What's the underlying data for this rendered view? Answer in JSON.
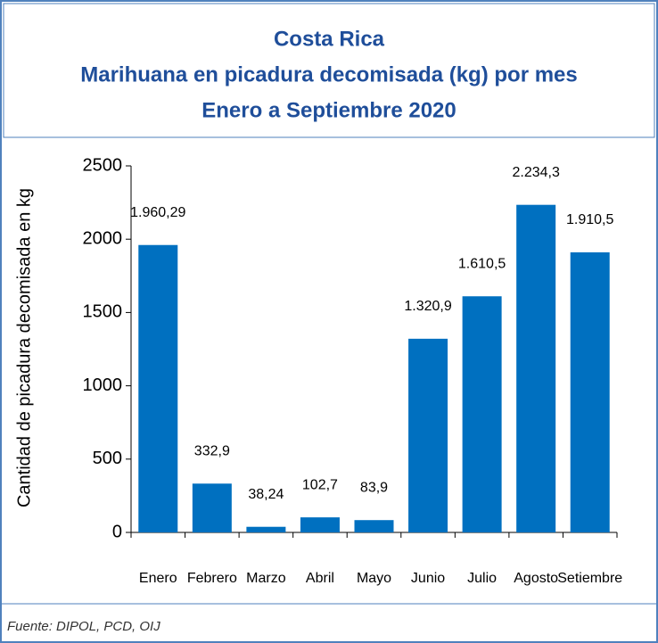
{
  "chart_data": {
    "type": "bar",
    "title": [
      "Costa Rica",
      "Marihuana en picadura decomisada (kg) por mes",
      "Enero a Septiembre 2020"
    ],
    "y_label": "Cantidad de picadura decomisada en kg",
    "categories": [
      "Enero",
      "Febrero",
      "Marzo",
      "Abril",
      "Mayo",
      "Junio",
      "Julio",
      "Agosto",
      "Setiembre"
    ],
    "values": [
      1960.29,
      332.9,
      38.24,
      102.7,
      83.9,
      1320.9,
      1610.5,
      2234.3,
      1910.5
    ],
    "value_labels": [
      "1.960,29",
      "332,9",
      "38,24",
      "102,7",
      "83,9",
      "1.320,9",
      "1.610,5",
      "2.234,3",
      "1.910,5"
    ],
    "color": "#0070c0",
    "ylim": [
      0,
      2500
    ],
    "yticks": [
      0,
      500,
      1000,
      1500,
      2000,
      2500
    ],
    "source": "Fuente: DIPOL, PCD, OIJ"
  }
}
